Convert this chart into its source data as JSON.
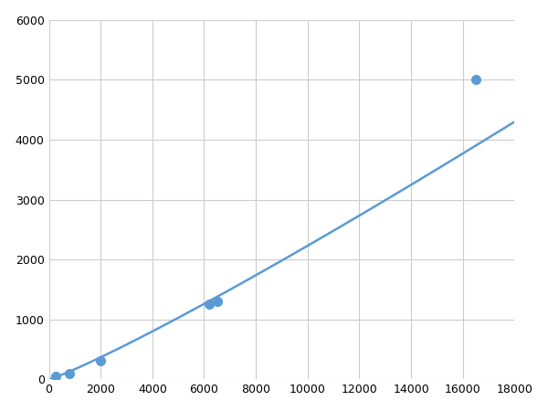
{
  "x_points": [
    250,
    800,
    2000,
    6200,
    6500,
    16500
  ],
  "y_points": [
    50,
    100,
    310,
    1250,
    1300,
    5000
  ],
  "line_color": "#5b9bd5",
  "marker_color": "#5b9bd5",
  "marker_size": 7,
  "linewidth": 1.8,
  "xlim": [
    0,
    18000
  ],
  "ylim": [
    0,
    6000
  ],
  "xticks": [
    0,
    2000,
    4000,
    6000,
    8000,
    10000,
    12000,
    14000,
    16000,
    18000
  ],
  "yticks": [
    0,
    1000,
    2000,
    3000,
    4000,
    5000,
    6000
  ],
  "grid_color": "#cccccc",
  "background_color": "#ffffff",
  "figsize": [
    6.0,
    4.5
  ],
  "dpi": 100
}
